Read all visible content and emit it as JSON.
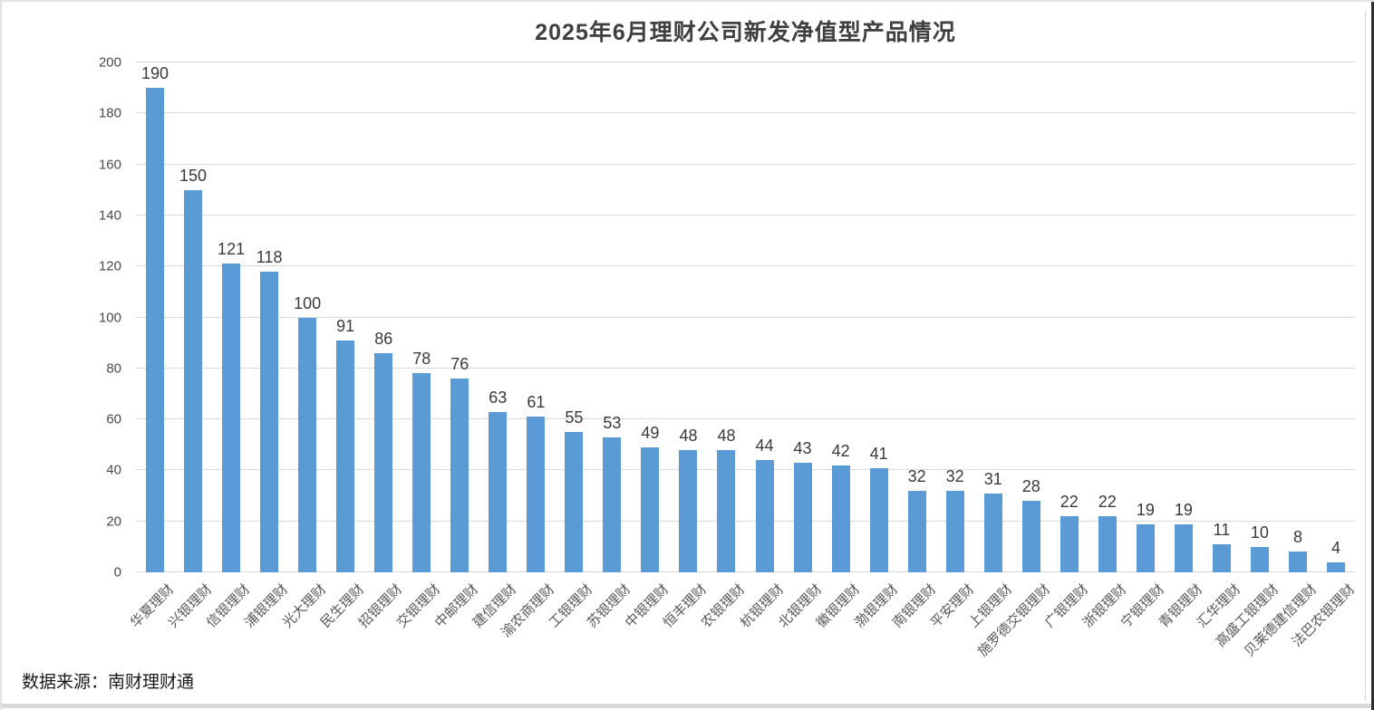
{
  "title": "2025年6月理财公司新发净值型产品情况",
  "source_note": "数据来源：南财理财通",
  "colors": {
    "bar": "#5B9BD5",
    "grid": "#D9D9D9",
    "title_text": "#3F3F3F",
    "axis_text": "#595959",
    "data_label_text": "#3A3A3A"
  },
  "chart_data": {
    "type": "bar",
    "title": "2025年6月理财公司新发净值型产品情况",
    "categories": [
      "华夏理财",
      "兴银理财",
      "信银理财",
      "浦银理财",
      "光大理财",
      "民生理财",
      "招银理财",
      "交银理财",
      "中邮理财",
      "建信理财",
      "渝农商理财",
      "工银理财",
      "苏银理财",
      "中银理财",
      "恒丰理财",
      "农银理财",
      "杭银理财",
      "北银理财",
      "徽银理财",
      "渤银理财",
      "南银理财",
      "平安理财",
      "上银理财",
      "施罗德交银理财",
      "广银理财",
      "浙银理财",
      "宁银理财",
      "青银理财",
      "汇华理财",
      "高盛工银理财",
      "贝莱德建信理财",
      "法巴农银理财"
    ],
    "values": [
      190,
      150,
      121,
      118,
      100,
      91,
      86,
      78,
      76,
      63,
      61,
      55,
      53,
      49,
      48,
      48,
      44,
      43,
      42,
      41,
      32,
      32,
      31,
      28,
      22,
      22,
      19,
      19,
      11,
      10,
      8,
      4
    ],
    "xlabel": "",
    "ylabel": "",
    "ylim": [
      0,
      200
    ],
    "yticks": [
      0,
      20,
      40,
      60,
      80,
      100,
      120,
      140,
      160,
      180,
      200
    ],
    "grid": true,
    "legend": false,
    "data_labels": true,
    "x_label_rotation_deg": 45,
    "source": "数据来源：南财理财通"
  }
}
